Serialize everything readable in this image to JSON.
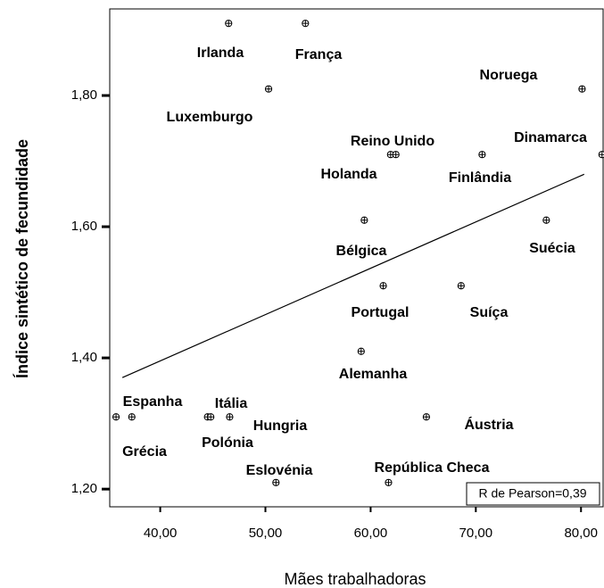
{
  "chart_data": {
    "type": "scatter",
    "x_label": "Mães trabalhadoras",
    "y_label": "Índice sintético de fecundidade",
    "annotation": "R de Pearson=0,39",
    "categories": [
      "Irlanda",
      "França",
      "Luxemburgo",
      "Noruega",
      "Holanda",
      "Reino Unido",
      "Finlândia",
      "Dinamarca",
      "Bélgica",
      "Suécia",
      "Portugal",
      "Suíça",
      "Alemanha",
      "Espanha",
      "Grécia",
      "Polónia",
      "Itália",
      "Hungria",
      "Áustria",
      "Eslovénia",
      "República Checa"
    ],
    "x": [
      46.5,
      53.8,
      50.3,
      80.1,
      61.9,
      62.4,
      70.6,
      82.0,
      59.4,
      76.7,
      61.2,
      68.6,
      59.1,
      35.8,
      37.3,
      44.5,
      44.8,
      46.6,
      65.3,
      51.0,
      61.7
    ],
    "values": [
      1.91,
      1.91,
      1.81,
      1.81,
      1.71,
      1.71,
      1.71,
      1.71,
      1.61,
      1.61,
      1.51,
      1.51,
      1.41,
      1.31,
      1.31,
      1.31,
      1.31,
      1.31,
      1.31,
      1.21,
      1.21
    ],
    "fit_line": {
      "x": [
        36.4,
        80.3
      ],
      "y": [
        1.37,
        1.68
      ]
    },
    "xlim": [
      35.2,
      82.1
    ],
    "ylim": [
      1.173,
      1.932
    ],
    "xticks": [
      {
        "value": 40,
        "label": "40,00"
      },
      {
        "value": 50,
        "label": "50,00"
      },
      {
        "value": 60,
        "label": "60,00"
      },
      {
        "value": 70,
        "label": "70,00"
      },
      {
        "value": 80,
        "label": "80,00"
      }
    ],
    "yticks": [
      {
        "value": 1.2,
        "label": "1,20"
      },
      {
        "value": 1.4,
        "label": "1,40"
      },
      {
        "value": 1.6,
        "label": "1,60"
      },
      {
        "value": 1.8,
        "label": "1,80"
      }
    ]
  }
}
